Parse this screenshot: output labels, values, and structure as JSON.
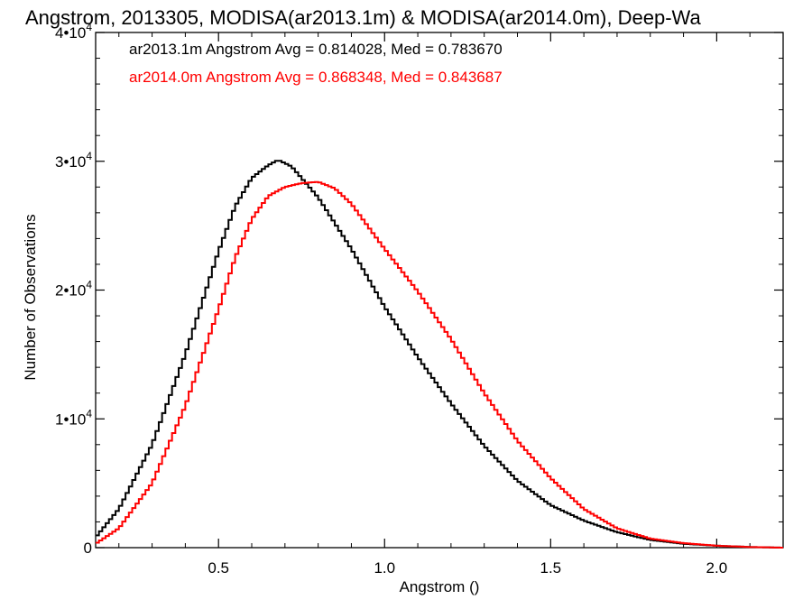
{
  "chart_data": {
    "type": "line",
    "title": "Angstrom, 2013305, MODISA(ar2013.1m) & MODISA(ar2014.0m), Deep-Wa",
    "xlabel": "Angstrom ()",
    "ylabel": "Number of Observations",
    "xlim": [
      0.13,
      2.2
    ],
    "ylim": [
      0,
      40000
    ],
    "x_ticks": [
      {
        "value": 0.5,
        "label": "0.5"
      },
      {
        "value": 1.0,
        "label": "1.0"
      },
      {
        "value": 1.5,
        "label": "1.5"
      },
      {
        "value": 2.0,
        "label": "2.0"
      }
    ],
    "y_ticks": [
      {
        "value": 0,
        "mant": "0",
        "exp": ""
      },
      {
        "value": 10000,
        "mant": "1•10",
        "exp": "4"
      },
      {
        "value": 20000,
        "mant": "2•10",
        "exp": "4"
      },
      {
        "value": 30000,
        "mant": "3•10",
        "exp": "4"
      },
      {
        "value": 40000,
        "mant": "4•10",
        "exp": "4"
      }
    ],
    "grid": false,
    "legend_position": "top-left",
    "series": [
      {
        "name": "ar2013.1m Angstrom Avg = 0.814028, Med = 0.783670",
        "color": "#000000",
        "x": [
          0.13,
          0.2,
          0.3,
          0.4,
          0.5,
          0.55,
          0.6,
          0.65,
          0.68,
          0.72,
          0.8,
          0.9,
          1.0,
          1.1,
          1.2,
          1.3,
          1.4,
          1.5,
          1.6,
          1.7,
          1.8,
          1.9,
          2.0,
          2.1,
          2.2
        ],
        "values": [
          800,
          3000,
          8000,
          15000,
          23000,
          26500,
          28700,
          29700,
          30100,
          29600,
          27200,
          23200,
          18700,
          14800,
          11200,
          7900,
          5200,
          3300,
          2100,
          1200,
          600,
          300,
          150,
          50,
          0
        ]
      },
      {
        "name": "ar2014.0m Angstrom Avg = 0.868348, Med = 0.843687",
        "color": "#ff0000",
        "x": [
          0.13,
          0.2,
          0.3,
          0.4,
          0.5,
          0.55,
          0.6,
          0.65,
          0.7,
          0.75,
          0.8,
          0.85,
          0.9,
          1.0,
          1.1,
          1.2,
          1.3,
          1.4,
          1.5,
          1.6,
          1.7,
          1.8,
          1.9,
          2.0,
          2.1,
          2.2
        ],
        "values": [
          300,
          1500,
          5000,
          11000,
          18500,
          22500,
          25500,
          27300,
          28000,
          28300,
          28400,
          27900,
          26700,
          23200,
          19900,
          16200,
          12000,
          8300,
          5400,
          3000,
          1500,
          700,
          350,
          150,
          50,
          0
        ]
      }
    ]
  }
}
